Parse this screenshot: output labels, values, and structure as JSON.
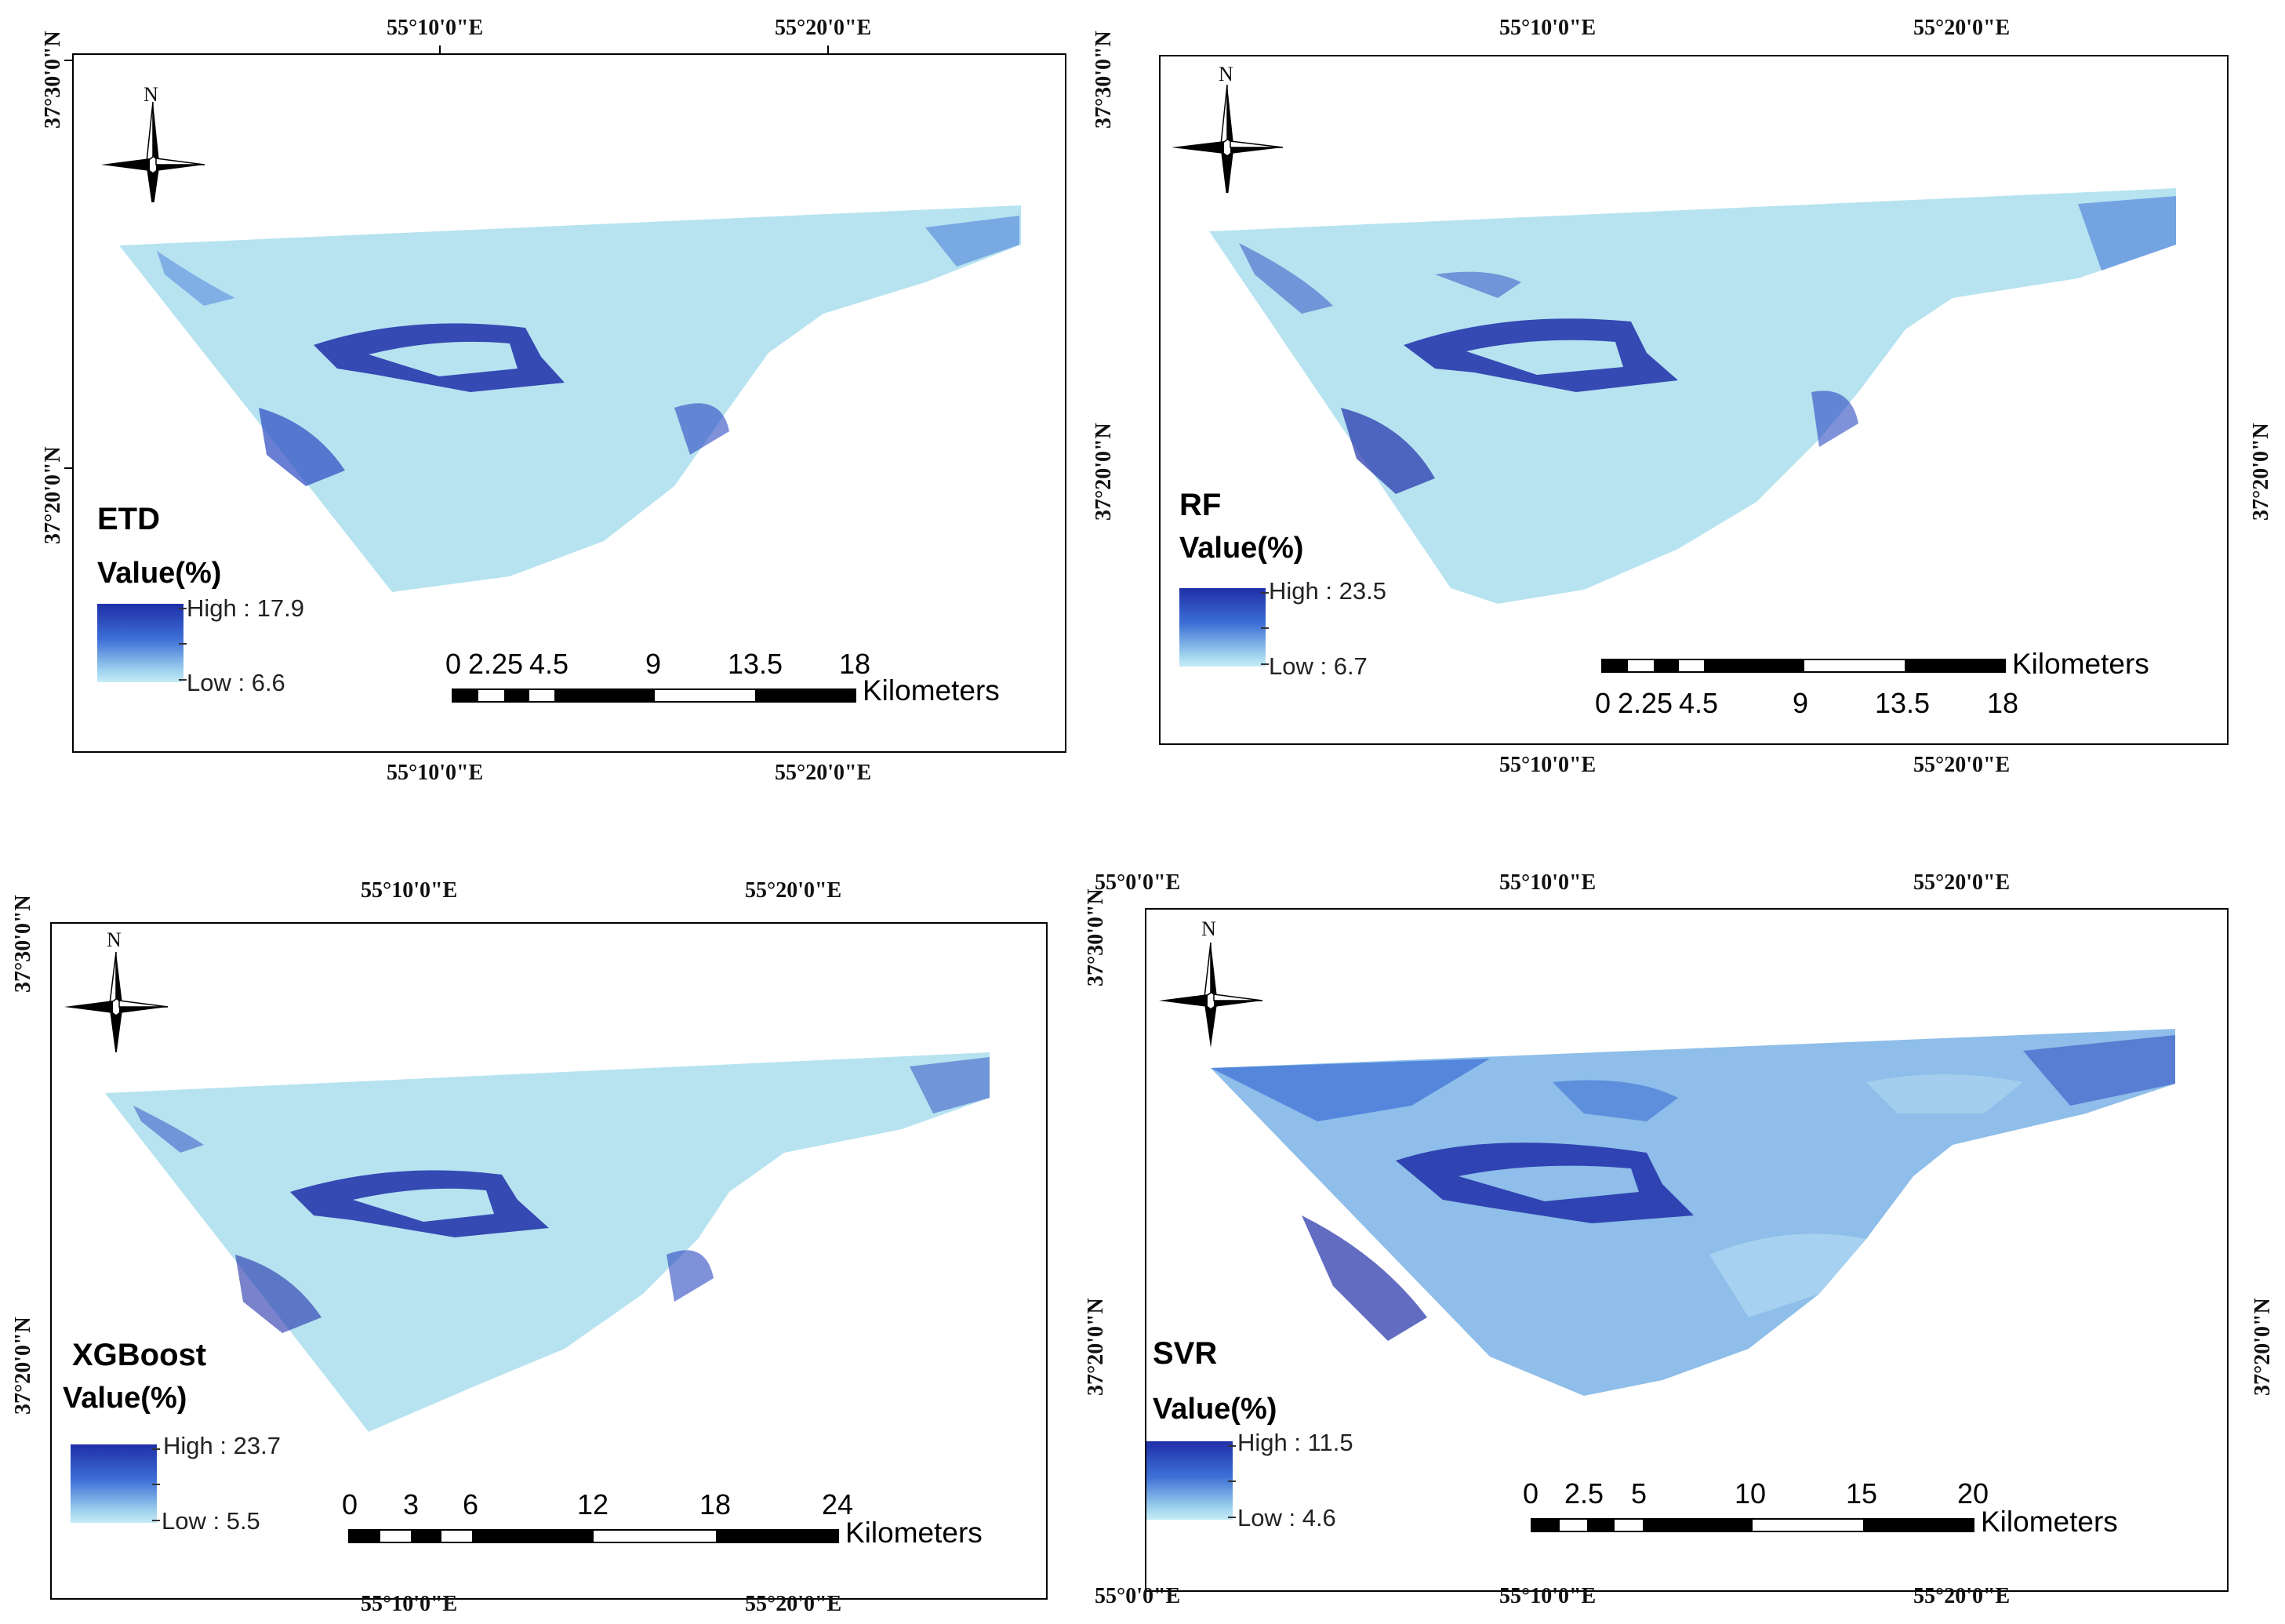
{
  "coords": {
    "lon_10": "55°10'0\"E",
    "lon_20": "55°20'0\"E",
    "lon_0": "55°0'0\"E",
    "lat_30": "37°30'0\"N",
    "lat_20": "37°20'0\"N"
  },
  "north_letter": "N",
  "value_label": "Value(%)",
  "unit_label": "Kilometers",
  "colors": {
    "low": "#c6ecf6",
    "mid": "#5a8fdb",
    "high": "#1f2fa8",
    "frame": "#000000"
  },
  "panels": [
    {
      "model": "ETD",
      "high": "High : 17.9",
      "low": "Low : 6.6",
      "scale_labels": [
        "0",
        "2.25",
        "4.5",
        "9",
        "13.5",
        "18"
      ],
      "scale_max_km": 18
    },
    {
      "model": "RF",
      "high": "High : 23.5",
      "low": "Low : 6.7",
      "scale_labels": [
        "0",
        "2.25",
        "4.5",
        "9",
        "13.5",
        "18"
      ],
      "scale_max_km": 18
    },
    {
      "model": "XGBoost",
      "high": "High : 23.7",
      "low": "Low : 5.5",
      "scale_labels": [
        "0",
        "3",
        "6",
        "12",
        "18",
        "24"
      ],
      "scale_max_km": 24
    },
    {
      "model": "SVR",
      "high": "High : 11.5",
      "low": "Low : 4.6",
      "scale_labels": [
        "0",
        "2.5",
        "5",
        "10",
        "15",
        "20"
      ],
      "scale_max_km": 20
    }
  ]
}
